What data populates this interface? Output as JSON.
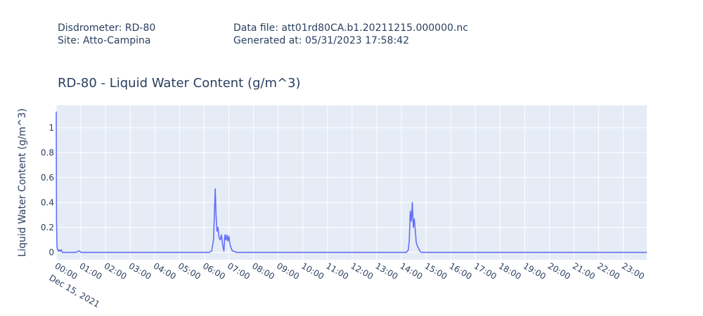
{
  "header": {
    "disdrometer": "Disdrometer: RD-80",
    "site": "Site: Atto-Campina",
    "data_file": "Data file: att01rd80CA.b1.20211215.000000.nc",
    "generated": "Generated at: 05/31/2023 17:58:42"
  },
  "colors": {
    "plot_bg": "#e5ecf6",
    "grid": "#ffffff",
    "line": "#636efa",
    "text": "#2a3f5f"
  },
  "chart_data": {
    "type": "line",
    "title": "RD-80 - Liquid Water Content (g/m^3)",
    "xlabel": "",
    "ylabel": "Liquid Water Content (g/m^3)",
    "date_label": "Dec 15, 2021",
    "x_unit": "hour of day",
    "xlim": [
      0,
      23.95
    ],
    "ylim": [
      -0.06,
      1.18
    ],
    "y_ticks": [
      0,
      0.2,
      0.4,
      0.6,
      0.8,
      1
    ],
    "y_tick_labels": [
      "0",
      "0.2",
      "0.4",
      "0.6",
      "0.8",
      "1"
    ],
    "x_ticks": [
      0,
      1,
      2,
      3,
      4,
      5,
      6,
      7,
      8,
      9,
      10,
      11,
      12,
      13,
      14,
      15,
      16,
      17,
      18,
      19,
      20,
      21,
      22,
      23
    ],
    "x_tick_labels": [
      "00:00",
      "01:00",
      "02:00",
      "03:00",
      "04:00",
      "05:00",
      "06:00",
      "07:00",
      "08:00",
      "09:00",
      "10:00",
      "11:00",
      "12:00",
      "13:00",
      "14:00",
      "15:00",
      "16:00",
      "17:00",
      "18:00",
      "19:00",
      "20:00",
      "21:00",
      "22:00",
      "23:00"
    ],
    "grid": true,
    "series": [
      {
        "x": [
          0.0,
          0.01,
          0.03,
          0.06,
          0.1,
          0.13,
          0.17,
          0.2,
          0.25,
          0.3,
          0.35,
          0.5,
          0.8,
          0.9,
          0.95,
          1.0,
          1.5,
          3.0,
          5.0,
          6.0,
          6.2,
          6.3,
          6.38,
          6.42,
          6.45,
          6.48,
          6.52,
          6.56,
          6.6,
          6.65,
          6.7,
          6.75,
          6.8,
          6.84,
          6.88,
          6.92,
          6.96,
          7.0,
          7.05,
          7.1,
          7.15,
          7.2,
          7.3,
          7.5,
          8.0,
          10.0,
          12.0,
          13.5,
          14.2,
          14.28,
          14.32,
          14.36,
          14.4,
          14.44,
          14.48,
          14.52,
          14.56,
          14.6,
          14.65,
          14.7,
          14.75,
          14.8,
          14.85,
          14.9,
          15.0,
          15.5,
          18.0,
          21.0,
          23.95
        ],
        "y": [
          1.13,
          0.25,
          0.04,
          0.02,
          0.01,
          0.02,
          0.01,
          0.02,
          0.0,
          0.0,
          0.0,
          0.0,
          0.0,
          0.01,
          0.01,
          0.0,
          0.0,
          0.0,
          0.0,
          0.0,
          0.0,
          0.01,
          0.1,
          0.35,
          0.51,
          0.3,
          0.17,
          0.2,
          0.12,
          0.1,
          0.14,
          0.06,
          0.01,
          0.14,
          0.1,
          0.14,
          0.09,
          0.13,
          0.06,
          0.03,
          0.01,
          0.01,
          0.0,
          0.0,
          0.0,
          0.0,
          0.0,
          0.0,
          0.0,
          0.02,
          0.1,
          0.33,
          0.25,
          0.4,
          0.2,
          0.27,
          0.18,
          0.08,
          0.05,
          0.03,
          0.01,
          0.0,
          0.0,
          0.0,
          0.0,
          0.0,
          0.0,
          0.0,
          0.0
        ]
      }
    ]
  }
}
